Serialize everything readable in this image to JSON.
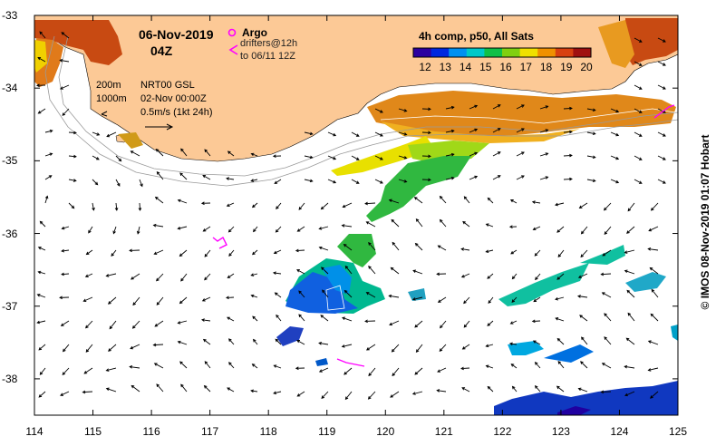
{
  "header": {
    "date": "06-Nov-2019",
    "hour": "04Z"
  },
  "legend": {
    "argo_label": "Argo",
    "drifters_label": "drifters@12h",
    "drifters_period": "to 06/11 12Z",
    "argo_color": "#ff00ff"
  },
  "isobaths": {
    "shallow": "200m",
    "deep": "1000m"
  },
  "currents": {
    "product": "NRT00 GSL",
    "date": "02-Nov 00:00Z",
    "scale": "0.5m/s (1kt 24h)"
  },
  "colorbar": {
    "title": "4h comp, p50, All Sats",
    "ticks": [
      "12",
      "13",
      "14",
      "15",
      "16",
      "17",
      "18",
      "19",
      "20"
    ],
    "colors": [
      "#2b00a0",
      "#0028e0",
      "#0090f0",
      "#00c8c8",
      "#10c048",
      "#80d010",
      "#f0e000",
      "#f09000",
      "#d84010",
      "#a01010"
    ]
  },
  "axes": {
    "x_ticks": [
      "114",
      "115",
      "116",
      "117",
      "118",
      "119",
      "120",
      "121",
      "122",
      "123",
      "124",
      "125"
    ],
    "y_ticks": [
      "-33",
      "-34",
      "-35",
      "-36",
      "-37",
      "-38"
    ],
    "x_range": [
      114,
      125
    ],
    "y_range": [
      -38.5,
      -33
    ]
  },
  "land_color": "#fcc996",
  "credit": "© IMOS 08-Nov-2019 01:07 Hobart"
}
